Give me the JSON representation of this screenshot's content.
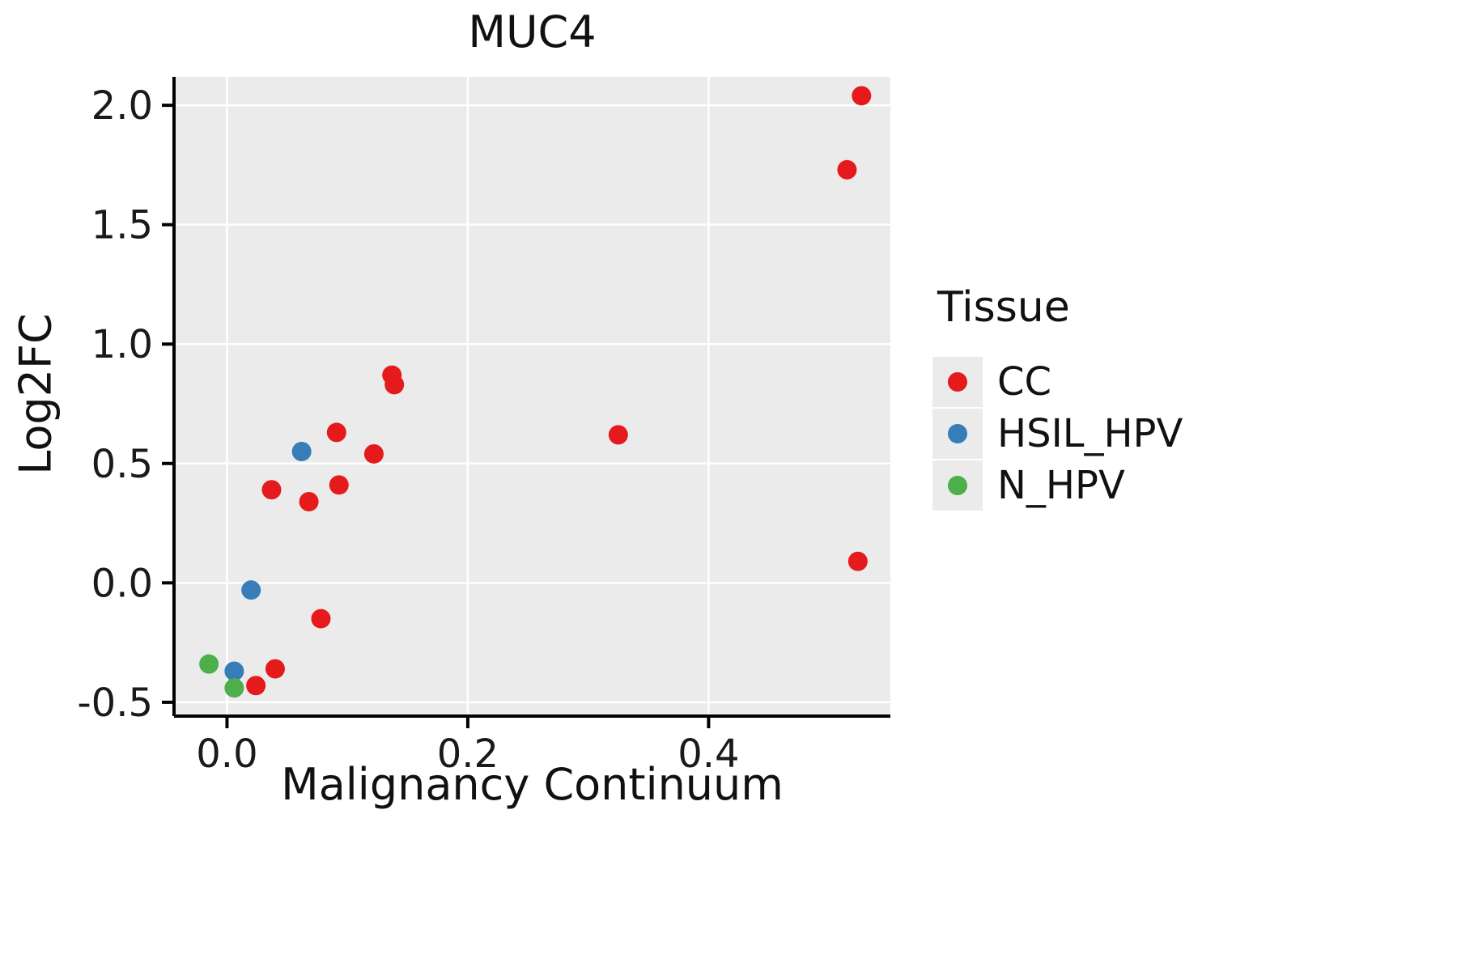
{
  "chart_data": {
    "type": "scatter",
    "title": "MUC4",
    "xlabel": "Malignancy Continuum",
    "ylabel": "Log2FC",
    "xlim": [
      -0.044,
      0.551
    ],
    "ylim": [
      -0.558,
      2.119
    ],
    "x_ticks": [
      {
        "value": 0.0,
        "label": "0.0"
      },
      {
        "value": 0.2,
        "label": "0.2"
      },
      {
        "value": 0.4,
        "label": "0.4"
      }
    ],
    "y_ticks": [
      {
        "value": -0.5,
        "label": "-0.5"
      },
      {
        "value": 0.0,
        "label": "0.0"
      },
      {
        "value": 0.5,
        "label": "0.5"
      },
      {
        "value": 1.0,
        "label": "1.0"
      },
      {
        "value": 1.5,
        "label": "1.5"
      },
      {
        "value": 2.0,
        "label": "2.0"
      }
    ],
    "grid": "major-only",
    "panel_background": "#EBEBEB",
    "gridline_color": "#FFFFFF",
    "axis_color": "#000000",
    "tick_label_color": "#1a1a1a",
    "legend": {
      "title": "Tissue",
      "position": "right"
    },
    "series": [
      {
        "name": "CC",
        "color": "#E41A1C",
        "points": [
          [
            0.527,
            2.04
          ],
          [
            0.515,
            1.73
          ],
          [
            0.137,
            0.87
          ],
          [
            0.139,
            0.83
          ],
          [
            0.091,
            0.63
          ],
          [
            0.325,
            0.62
          ],
          [
            0.122,
            0.54
          ],
          [
            0.093,
            0.41
          ],
          [
            0.037,
            0.39
          ],
          [
            0.068,
            0.34
          ],
          [
            0.524,
            0.09
          ],
          [
            0.078,
            -0.15
          ],
          [
            0.04,
            -0.36
          ],
          [
            0.024,
            -0.43
          ]
        ]
      },
      {
        "name": "HSIL_HPV",
        "color": "#377EB8",
        "points": [
          [
            0.062,
            0.55
          ],
          [
            0.02,
            -0.03
          ],
          [
            0.006,
            -0.37
          ]
        ]
      },
      {
        "name": "N_HPV",
        "color": "#4DAF4A",
        "points": [
          [
            -0.015,
            -0.34
          ],
          [
            0.006,
            -0.44
          ]
        ]
      }
    ]
  }
}
